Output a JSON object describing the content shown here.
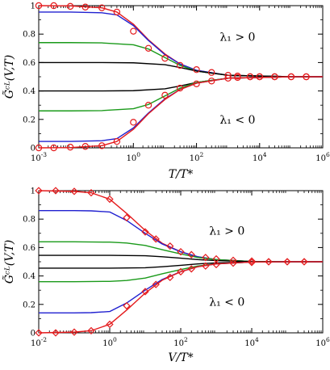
{
  "chart_data": [
    {
      "type": "line",
      "xscale": "log",
      "xlim": [
        0.001,
        1000000
      ],
      "ylim": [
        0,
        1
      ],
      "xlabel": "T/T*",
      "ylabel": "G̃ᶜᴸ(V,T)",
      "xticks": [
        {
          "value": 0.001,
          "base": "10",
          "exp": "-3"
        },
        {
          "value": 1,
          "base": "10",
          "exp": "0"
        },
        {
          "value": 100,
          "base": "10",
          "exp": "2"
        },
        {
          "value": 10000,
          "base": "10",
          "exp": "4"
        },
        {
          "value": 1000000,
          "base": "10",
          "exp": "6"
        }
      ],
      "yticks": [
        "0",
        "0.2",
        "0.4",
        "0.6",
        "0.8",
        "1"
      ],
      "annotations": [
        {
          "text": "λ₁ > 0",
          "x": 2000,
          "y": 0.78
        },
        {
          "text": "λ₁ < 0",
          "x": 2000,
          "y": 0.2
        }
      ],
      "series": [
        {
          "color": "#e41a1c",
          "x": [
            0.001,
            0.01,
            0.1,
            0.3,
            1,
            3,
            10,
            30,
            100,
            1000,
            100000,
            1000000
          ],
          "y": [
            1.0,
            0.998,
            0.985,
            0.955,
            0.87,
            0.76,
            0.66,
            0.59,
            0.545,
            0.51,
            0.5,
            0.5
          ]
        },
        {
          "color": "#2020d0",
          "x": [
            0.001,
            0.01,
            0.1,
            0.3,
            1,
            3,
            10,
            30,
            100,
            1000,
            100000,
            1000000
          ],
          "y": [
            0.955,
            0.955,
            0.95,
            0.935,
            0.86,
            0.755,
            0.655,
            0.59,
            0.545,
            0.51,
            0.5,
            0.5
          ]
        },
        {
          "color": "#1a9a1a",
          "x": [
            0.001,
            0.01,
            0.1,
            1,
            3,
            10,
            30,
            100,
            1000,
            100000,
            1000000
          ],
          "y": [
            0.74,
            0.74,
            0.738,
            0.725,
            0.695,
            0.635,
            0.58,
            0.54,
            0.51,
            0.5,
            0.5
          ]
        },
        {
          "color": "#000000",
          "x": [
            0.001,
            0.1,
            1,
            10,
            30,
            100,
            1000,
            100000,
            1000000
          ],
          "y": [
            0.6,
            0.6,
            0.598,
            0.585,
            0.565,
            0.54,
            0.51,
            0.5,
            0.5
          ]
        },
        {
          "color": "#000000",
          "x": [
            0.001,
            0.1,
            1,
            10,
            30,
            100,
            1000,
            100000,
            1000000
          ],
          "y": [
            0.4,
            0.4,
            0.402,
            0.415,
            0.435,
            0.46,
            0.49,
            0.5,
            0.5
          ]
        },
        {
          "color": "#1a9a1a",
          "x": [
            0.001,
            0.01,
            0.1,
            1,
            3,
            10,
            30,
            100,
            1000,
            100000,
            1000000
          ],
          "y": [
            0.26,
            0.26,
            0.262,
            0.275,
            0.305,
            0.365,
            0.42,
            0.46,
            0.49,
            0.5,
            0.5
          ]
        },
        {
          "color": "#2020d0",
          "x": [
            0.001,
            0.01,
            0.1,
            0.3,
            1,
            3,
            10,
            30,
            100,
            1000,
            100000,
            1000000
          ],
          "y": [
            0.045,
            0.045,
            0.05,
            0.065,
            0.14,
            0.245,
            0.345,
            0.41,
            0.455,
            0.49,
            0.5,
            0.5
          ]
        },
        {
          "color": "#e41a1c",
          "x": [
            0.001,
            0.01,
            0.1,
            0.3,
            1,
            3,
            10,
            30,
            100,
            1000,
            100000,
            1000000
          ],
          "y": [
            0.0,
            0.002,
            0.015,
            0.045,
            0.13,
            0.24,
            0.34,
            0.41,
            0.455,
            0.49,
            0.5,
            0.5
          ]
        }
      ],
      "markers": [
        {
          "shape": "circle",
          "color": "#e41a1c",
          "x": [
            0.001,
            0.003,
            0.01,
            0.03,
            0.1,
            0.3,
            1,
            3,
            10,
            30,
            100,
            300,
            1000,
            2000,
            5000,
            10000,
            30000,
            100000,
            300000
          ],
          "y": [
            1.0,
            1.0,
            0.995,
            0.99,
            0.985,
            0.955,
            0.82,
            0.7,
            0.63,
            0.58,
            0.55,
            0.53,
            0.51,
            0.505,
            0.5,
            0.5,
            0.5,
            0.5,
            0.5
          ]
        },
        {
          "shape": "circle",
          "color": "#e41a1c",
          "x": [
            0.001,
            0.003,
            0.01,
            0.03,
            0.1,
            0.3,
            1,
            3,
            10,
            30,
            100,
            300,
            1000,
            2000,
            5000,
            10000,
            30000,
            100000,
            300000
          ],
          "y": [
            0.0,
            0.0,
            0.005,
            0.01,
            0.015,
            0.045,
            0.18,
            0.3,
            0.37,
            0.42,
            0.45,
            0.47,
            0.49,
            0.495,
            0.5,
            0.5,
            0.5,
            0.5,
            0.5
          ]
        }
      ]
    },
    {
      "type": "line",
      "xscale": "log",
      "xlim": [
        0.01,
        1000000
      ],
      "ylim": [
        0,
        1
      ],
      "xlabel": "V/T*",
      "ylabel": "G̃ᶜᴸ(V,T)",
      "xticks": [
        {
          "value": 0.01,
          "base": "10",
          "exp": "-2"
        },
        {
          "value": 1,
          "base": "10",
          "exp": "0"
        },
        {
          "value": 100,
          "base": "10",
          "exp": "2"
        },
        {
          "value": 10000,
          "base": "10",
          "exp": "4"
        },
        {
          "value": 1000000,
          "base": "10",
          "exp": "6"
        }
      ],
      "yticks": [
        "0",
        "0.2",
        "0.4",
        "0.6",
        "0.8",
        "1"
      ],
      "annotations": [
        {
          "text": "λ₁ > 0",
          "x": 2000,
          "y": 0.72
        },
        {
          "text": "λ₁ < 0",
          "x": 2000,
          "y": 0.22
        }
      ],
      "series": [
        {
          "color": "#e41a1c",
          "x": [
            0.01,
            0.1,
            0.3,
            1,
            3,
            10,
            30,
            100,
            300,
            1000,
            10000,
            100000,
            1000000
          ],
          "y": [
            1.0,
            0.995,
            0.985,
            0.94,
            0.84,
            0.72,
            0.63,
            0.57,
            0.535,
            0.515,
            0.502,
            0.5,
            0.5
          ]
        },
        {
          "color": "#2020d0",
          "x": [
            0.01,
            0.1,
            0.3,
            1,
            3,
            10,
            30,
            100,
            300,
            1000,
            10000,
            100000,
            1000000
          ],
          "y": [
            0.86,
            0.86,
            0.858,
            0.85,
            0.79,
            0.7,
            0.625,
            0.57,
            0.535,
            0.515,
            0.502,
            0.5,
            0.5
          ]
        },
        {
          "color": "#1a9a1a",
          "x": [
            0.01,
            0.1,
            1,
            3,
            10,
            30,
            100,
            300,
            1000,
            10000,
            100000,
            1000000
          ],
          "y": [
            0.64,
            0.64,
            0.638,
            0.632,
            0.615,
            0.585,
            0.555,
            0.53,
            0.515,
            0.502,
            0.5,
            0.5
          ]
        },
        {
          "color": "#000000",
          "x": [
            0.01,
            1,
            10,
            30,
            100,
            300,
            1000,
            10000,
            1000000
          ],
          "y": [
            0.545,
            0.545,
            0.542,
            0.535,
            0.525,
            0.515,
            0.508,
            0.501,
            0.5
          ]
        },
        {
          "color": "#000000",
          "x": [
            0.01,
            1,
            10,
            30,
            100,
            300,
            1000,
            10000,
            1000000
          ],
          "y": [
            0.455,
            0.455,
            0.458,
            0.465,
            0.475,
            0.485,
            0.492,
            0.499,
            0.5
          ]
        },
        {
          "color": "#1a9a1a",
          "x": [
            0.01,
            0.1,
            1,
            3,
            10,
            30,
            100,
            300,
            1000,
            10000,
            100000,
            1000000
          ],
          "y": [
            0.36,
            0.36,
            0.362,
            0.368,
            0.385,
            0.415,
            0.445,
            0.47,
            0.485,
            0.498,
            0.5,
            0.5
          ]
        },
        {
          "color": "#2020d0",
          "x": [
            0.01,
            0.1,
            0.3,
            1,
            3,
            10,
            30,
            100,
            300,
            1000,
            10000,
            100000,
            1000000
          ],
          "y": [
            0.14,
            0.14,
            0.142,
            0.15,
            0.21,
            0.3,
            0.375,
            0.43,
            0.465,
            0.485,
            0.498,
            0.5,
            0.5
          ]
        },
        {
          "color": "#e41a1c",
          "x": [
            0.01,
            0.1,
            0.3,
            1,
            3,
            10,
            30,
            100,
            300,
            1000,
            10000,
            100000,
            1000000
          ],
          "y": [
            0.0,
            0.005,
            0.015,
            0.06,
            0.16,
            0.28,
            0.37,
            0.43,
            0.465,
            0.485,
            0.498,
            0.5,
            0.5
          ]
        }
      ],
      "markers": [
        {
          "shape": "diamond",
          "color": "#e41a1c",
          "x": [
            0.01,
            0.03,
            0.1,
            0.3,
            1,
            3,
            10,
            20,
            50,
            100,
            200,
            500,
            1000,
            3000,
            10000,
            30000,
            100000,
            300000
          ],
          "y": [
            1.0,
            1.0,
            0.995,
            0.985,
            0.94,
            0.81,
            0.71,
            0.66,
            0.61,
            0.57,
            0.55,
            0.53,
            0.52,
            0.51,
            0.505,
            0.5,
            0.5,
            0.5
          ]
        },
        {
          "shape": "diamond",
          "color": "#e41a1c",
          "x": [
            0.01,
            0.03,
            0.1,
            0.3,
            1,
            3,
            10,
            20,
            50,
            100,
            200,
            500,
            1000,
            3000,
            10000,
            30000,
            100000,
            300000
          ],
          "y": [
            0.0,
            0.0,
            0.005,
            0.015,
            0.06,
            0.19,
            0.29,
            0.34,
            0.39,
            0.43,
            0.45,
            0.47,
            0.48,
            0.49,
            0.495,
            0.5,
            0.5,
            0.5
          ]
        }
      ]
    }
  ]
}
